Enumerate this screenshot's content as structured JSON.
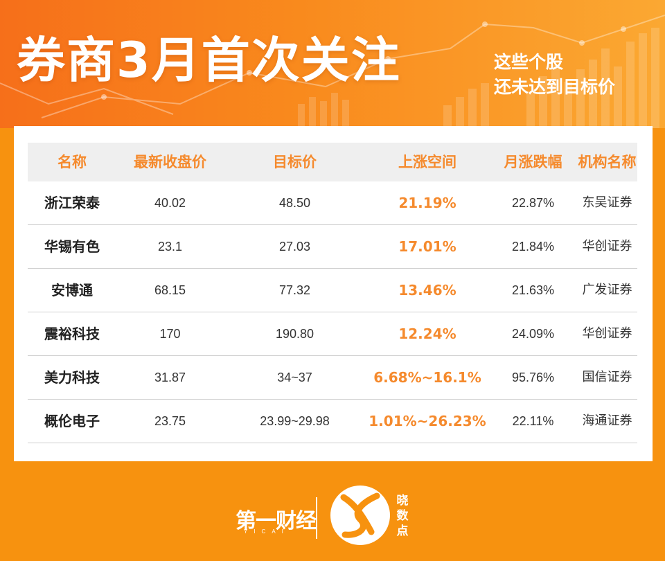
{
  "header": {
    "title": "券商3月首次关注",
    "subtitle_line1": "这些个股",
    "subtitle_line2": "还未达到目标价"
  },
  "table": {
    "columns": [
      "名称",
      "最新收盘价",
      "目标价",
      "上涨空间",
      "月涨跌幅",
      "机构名称"
    ],
    "rows": [
      {
        "name": "浙江荣泰",
        "close": "40.02",
        "target": "48.50",
        "upside": "21.19%",
        "monthly": "22.87%",
        "institution": "东吴证券"
      },
      {
        "name": "华锡有色",
        "close": "23.1",
        "target": "27.03",
        "upside": "17.01%",
        "monthly": "21.84%",
        "institution": "华创证券"
      },
      {
        "name": "安博通",
        "close": "68.15",
        "target": "77.32",
        "upside": "13.46%",
        "monthly": "21.63%",
        "institution": "广发证券"
      },
      {
        "name": "震裕科技",
        "close": "170",
        "target": "190.80",
        "upside": "12.24%",
        "monthly": "24.09%",
        "institution": "华创证券"
      },
      {
        "name": "美力科技",
        "close": "31.87",
        "target": "34~37",
        "upside": "6.68%~16.1%",
        "monthly": "95.76%",
        "institution": "国信证券"
      },
      {
        "name": "概伦电子",
        "close": "23.75",
        "target": "23.99~29.98",
        "upside": "1.01%~26.23%",
        "monthly": "22.11%",
        "institution": "海通证券"
      }
    ]
  },
  "footer": {
    "logo_text": "第一财经",
    "logo_sub": "YICAI",
    "brand_chars": [
      "晓",
      "数",
      "点"
    ]
  },
  "colors": {
    "background": "#f7920f",
    "header_accent": "#f66f1a",
    "highlight": "#f58a2d",
    "table_header_bg": "#efefef"
  }
}
